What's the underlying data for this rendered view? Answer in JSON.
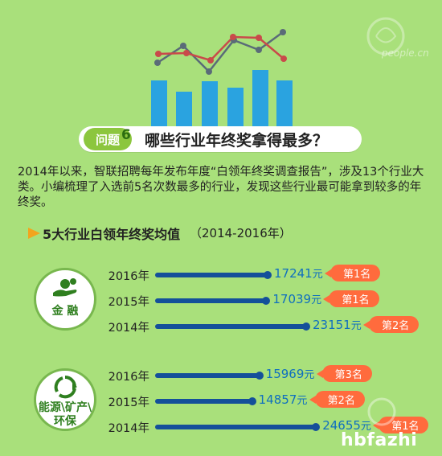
{
  "header": {
    "question_tag": "问题",
    "question_number": "6",
    "question_title": "哪些行业年终奖拿得最多？"
  },
  "intro_text": "2014年以来，智联招聘每年发布年度“白领年终奖调查报告”，涉及13个行业大类。小编梳理了入选前5名次数最多的行业，发现这些行业最可能拿到较多的年终奖。",
  "section": {
    "title": "5大行业白领年终奖均值",
    "years_range": "（2014-2016年）"
  },
  "industries": [
    {
      "name": "金 融",
      "icon": "money-hand-icon",
      "rows": [
        {
          "year": "2016年",
          "value": "17241",
          "unit": "元",
          "rank": "第1名",
          "bar_value": 17241
        },
        {
          "year": "2015年",
          "value": "17039",
          "unit": "元",
          "rank": "第1名",
          "bar_value": 17039
        },
        {
          "year": "2014年",
          "value": "23151",
          "unit": "元",
          "rank": "第2名",
          "bar_value": 23151
        }
      ]
    },
    {
      "name_line1": "能源\\矿产\\",
      "name_line2": "环保",
      "icon": "recycle-icon",
      "rows": [
        {
          "year": "2016年",
          "value": "15969",
          "unit": "元",
          "rank": "第3名",
          "bar_value": 15969
        },
        {
          "year": "2015年",
          "value": "14857",
          "unit": "元",
          "rank": "第2名",
          "bar_value": 14857
        },
        {
          "year": "2014年",
          "value": "24655",
          "unit": "元",
          "rank": "第1名",
          "bar_value": 24655
        }
      ]
    }
  ],
  "watermarks": {
    "people_cn": "people.cn",
    "brand": "hbfazhi"
  },
  "colors": {
    "background": "#a9e07b",
    "bar": "#14509a",
    "value_text": "#0f6fbf",
    "badge": "#ff6b3d",
    "accent_green": "#8cc63e"
  }
}
